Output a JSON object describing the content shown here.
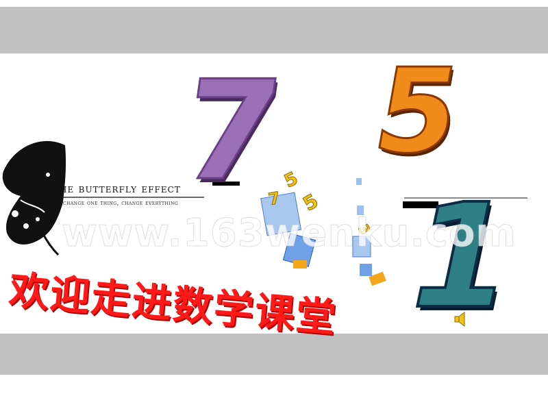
{
  "butterfly": {
    "title": "the butterfly effect",
    "subtitle": "change one thing, change everything",
    "icon": "butterfly-icon"
  },
  "watermark": "www.163wenku.com",
  "welcome": "欢迎走进数学课堂",
  "digits": {
    "seven": "7",
    "five": "5",
    "one": "1"
  },
  "decor_digits": [
    "5",
    "7",
    "5",
    "3"
  ],
  "icons": {
    "speaker": "speaker-icon"
  },
  "colors": {
    "band": "#c0c0c0",
    "welcome": "#ff1a1a"
  }
}
